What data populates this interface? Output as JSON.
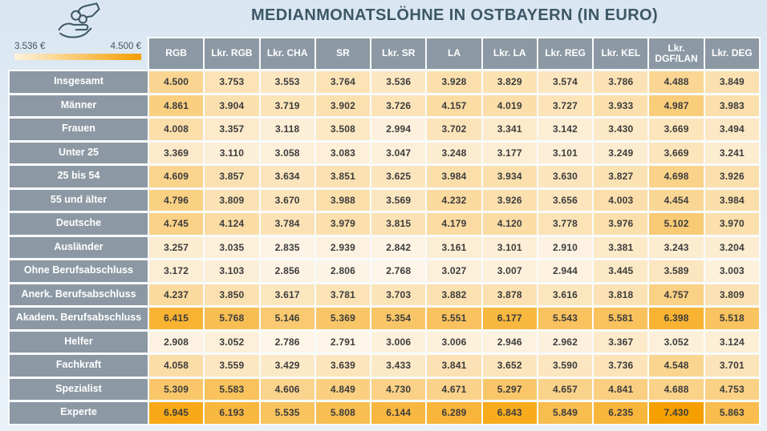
{
  "title": "MEDIANMONATSLÖHNE IN OSTBAYERN (IN EURO)",
  "legend": {
    "icon": "hand-coins-icon",
    "min_label": "3.536 €",
    "max_label": "4.500 €"
  },
  "colors": {
    "header_bg": "#8c99a4",
    "title_color": "#3d5766",
    "heat_low": "#fdf5e8",
    "heat_high": "#f6a000",
    "legend_low": "#fdf3dd",
    "legend_high": "#f59e00",
    "icon_stroke": "#3d5766"
  },
  "chart_data": {
    "type": "heatmap",
    "title": "MEDIANMONATSLÖHNE IN OSTBAYERN (IN EURO)",
    "unit": "EUR / Monat (Median)",
    "legend_range": {
      "min_label": "3.536 €",
      "max_label": "4.500 €"
    },
    "color_scale": {
      "min": 2768,
      "max": 7430
    },
    "columns": [
      "RGB",
      "Lkr. RGB",
      "Lkr. CHA",
      "SR",
      "Lkr. SR",
      "LA",
      "Lkr. LA",
      "Lkr. REG",
      "Lkr. KEL",
      "Lkr. DGF/LAN",
      "Lkr. DEG"
    ],
    "rows": [
      "Insgesamt",
      "Männer",
      "Frauen",
      "Unter 25",
      "25 bis 54",
      "55 und älter",
      "Deutsche",
      "Ausländer",
      "Ohne Berufsabschluss",
      "Anerk. Berufsabschluss",
      "Akadem. Berufsabschluss",
      "Helfer",
      "Fachkraft",
      "Spezialist",
      "Experte"
    ],
    "values": [
      [
        4500,
        3753,
        3553,
        3764,
        3536,
        3928,
        3829,
        3574,
        3786,
        4488,
        3849
      ],
      [
        4861,
        3904,
        3719,
        3902,
        3726,
        4157,
        4019,
        3727,
        3933,
        4987,
        3983
      ],
      [
        4008,
        3357,
        3118,
        3508,
        2994,
        3702,
        3341,
        3142,
        3430,
        3669,
        3494
      ],
      [
        3369,
        3110,
        3058,
        3083,
        3047,
        3248,
        3177,
        3101,
        3249,
        3669,
        3241
      ],
      [
        4609,
        3857,
        3634,
        3851,
        3625,
        3984,
        3934,
        3630,
        3827,
        4698,
        3926
      ],
      [
        4796,
        3809,
        3670,
        3988,
        3569,
        4232,
        3926,
        3656,
        4003,
        4454,
        3984
      ],
      [
        4745,
        4124,
        3784,
        3979,
        3815,
        4179,
        4120,
        3778,
        3976,
        5102,
        3970
      ],
      [
        3257,
        3035,
        2835,
        2939,
        2842,
        3161,
        3101,
        2910,
        3381,
        3243,
        3204
      ],
      [
        3172,
        3103,
        2856,
        2806,
        2768,
        3027,
        3007,
        2944,
        3445,
        3589,
        3003
      ],
      [
        4237,
        3850,
        3617,
        3781,
        3703,
        3882,
        3878,
        3616,
        3818,
        4757,
        3809
      ],
      [
        6415,
        5768,
        5146,
        5369,
        5354,
        5551,
        6177,
        5543,
        5581,
        6398,
        5518
      ],
      [
        2908,
        3052,
        2786,
        2791,
        3006,
        3006,
        2946,
        2962,
        3367,
        3052,
        3124
      ],
      [
        4058,
        3559,
        3429,
        3639,
        3433,
        3841,
        3652,
        3590,
        3736,
        4548,
        3701
      ],
      [
        5309,
        5583,
        4606,
        4849,
        4730,
        4671,
        5297,
        4657,
        4841,
        4688,
        4753
      ],
      [
        6945,
        6193,
        5535,
        5808,
        6144,
        6289,
        6843,
        5849,
        6235,
        7430,
        5863
      ]
    ]
  }
}
